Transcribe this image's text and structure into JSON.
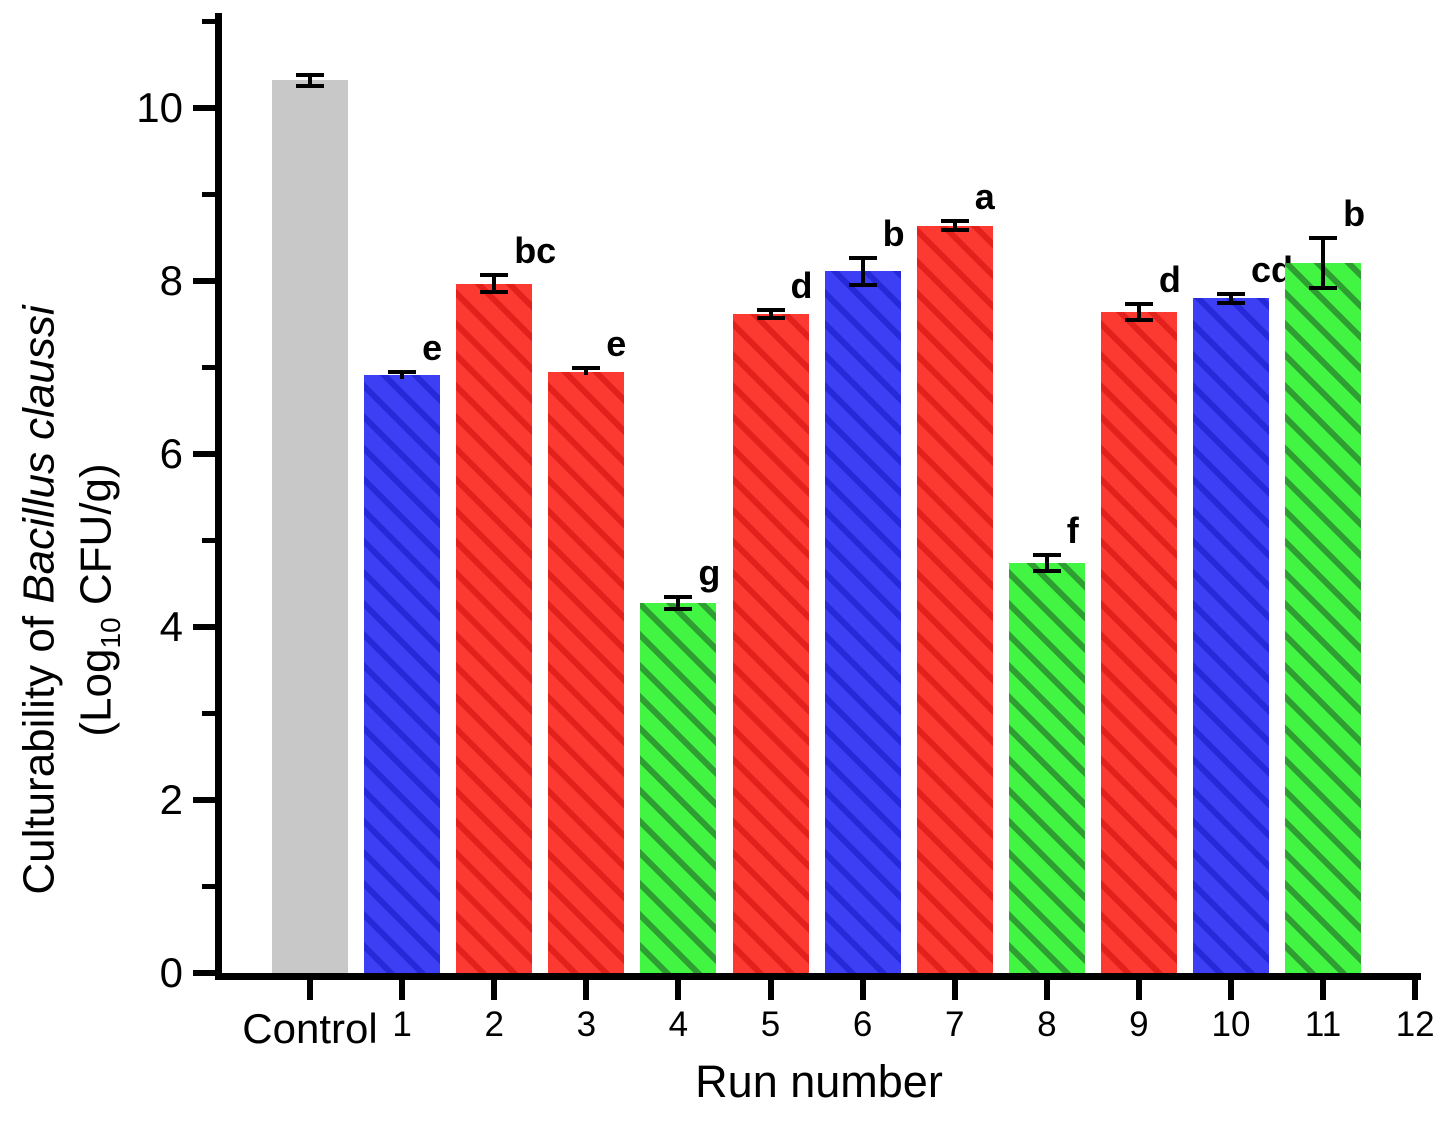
{
  "chart_data": {
    "type": "bar",
    "title": "",
    "xlabel": "Run number",
    "ylabel": {
      "line1_prefix": "Culturability of ",
      "line1_italic": "Bacillus claussi",
      "line2_pre": "(Log",
      "line2_sub": "10",
      "line2_post": " CFU/g)"
    },
    "ylim": [
      0,
      11.1
    ],
    "yticks_major": [
      0,
      2,
      4,
      6,
      8,
      10
    ],
    "yticks_minor": [
      1,
      3,
      5,
      7,
      9,
      11
    ],
    "grid": "off",
    "legend": "none",
    "categories": [
      "Control",
      "1",
      "2",
      "3",
      "4",
      "5",
      "6",
      "7",
      "8",
      "9",
      "10",
      "11"
    ],
    "extra_x_tick_label": "12",
    "values": [
      10.32,
      6.91,
      7.97,
      6.95,
      4.28,
      7.62,
      8.11,
      8.64,
      4.74,
      7.64,
      7.8,
      8.21
    ],
    "errors": [
      0.06,
      0.04,
      0.1,
      0.04,
      0.07,
      0.05,
      0.16,
      0.05,
      0.09,
      0.09,
      0.05,
      0.29
    ],
    "sig_letters": [
      "",
      "e",
      "bc",
      "e",
      "g",
      "d",
      "b",
      "a",
      "f",
      "d",
      "cd",
      "b"
    ],
    "bar_colors": [
      "gray",
      "blue",
      "red",
      "red",
      "green",
      "red",
      "blue",
      "red",
      "green",
      "red",
      "blue",
      "green"
    ],
    "palette": {
      "gray": {
        "fill": "#c8c8c8",
        "hatch": "#c8c8c8"
      },
      "blue": {
        "fill": "#3d3ff5",
        "hatch": "#2629d8"
      },
      "red": {
        "fill": "#fc3a31",
        "hatch": "#e2211c"
      },
      "green": {
        "fill": "#42f542",
        "hatch": "#2f9e32"
      },
      "axis": "#000000"
    }
  }
}
